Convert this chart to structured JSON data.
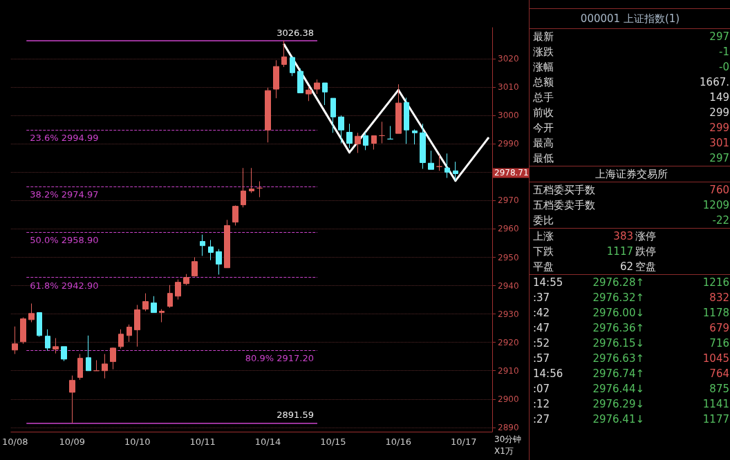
{
  "chart_data": [
    {
      "type": "candlestick",
      "categories": [
        "10/08",
        null,
        null,
        null,
        null,
        null,
        null,
        "10/09",
        null,
        null,
        null,
        null,
        null,
        null,
        null,
        "10/10",
        null,
        null,
        null,
        null,
        null,
        null,
        null,
        "10/11",
        null,
        null,
        null,
        null,
        null,
        null,
        null,
        "10/14",
        null,
        null,
        null,
        null,
        null,
        null,
        null,
        "10/15",
        null,
        null,
        null,
        null,
        null,
        null,
        null,
        "10/16",
        null,
        null,
        null,
        null,
        null,
        null,
        null,
        "10/17",
        null,
        null,
        null
      ],
      "ohlc": [
        [
          2917.3,
          2925.6,
          2915.9,
          2919.5
        ],
        [
          2920.2,
          2928.8,
          2919.5,
          2928.3
        ],
        [
          2928.0,
          2933.7,
          2927.1,
          2930.2
        ],
        [
          2930.5,
          2930.5,
          2922.0,
          2922.4
        ],
        [
          2922.2,
          2924.6,
          2917.1,
          2918.0
        ],
        [
          2917.6,
          2921.5,
          2916.1,
          2918.5
        ],
        [
          2918.5,
          2918.5,
          2913.4,
          2914.1
        ],
        [
          2902.4,
          2908.3,
          2891.59,
          2906.6
        ],
        [
          2907.6,
          2915.9,
          2906.8,
          2914.4
        ],
        [
          2914.6,
          2922.4,
          2910.0,
          2910.0
        ],
        [
          2910.0,
          2913.7,
          2910.0,
          2910.0
        ],
        [
          2910.0,
          2915.9,
          2907.3,
          2912.4
        ],
        [
          2913.2,
          2918.2,
          2910.5,
          2918.0
        ],
        [
          2918.5,
          2924.6,
          2917.8,
          2922.9
        ],
        [
          2922.4,
          2926.3,
          2920.2,
          2925.4
        ],
        [
          2924.4,
          2933.2,
          2918.5,
          2931.5
        ],
        [
          2931.7,
          2937.3,
          2931.0,
          2934.4
        ],
        [
          2933.9,
          2936.3,
          2930.5,
          2930.5
        ],
        [
          2930.5,
          2931.7,
          2927.1,
          2931.0
        ],
        [
          2932.7,
          2940.2,
          2932.2,
          2937.3
        ],
        [
          2936.3,
          2942.2,
          2935.1,
          2941.2
        ],
        [
          2940.7,
          2944.1,
          2940.2,
          2942.9
        ],
        [
          2943.4,
          2950.0,
          2943.2,
          2948.5
        ],
        [
          2955.6,
          2958.0,
          2950.5,
          2954.1
        ],
        [
          2953.7,
          2956.1,
          2949.0,
          2951.7
        ],
        [
          2952.0,
          2952.9,
          2943.9,
          2947.6
        ],
        [
          2946.3,
          2963.2,
          2946.3,
          2961.2
        ],
        [
          2962.4,
          2968.3,
          2961.2,
          2968.0
        ],
        [
          2968.5,
          2981.5,
          2967.6,
          2973.4
        ],
        [
          2973.4,
          2981.5,
          2972.7,
          2974.1
        ],
        [
          2974.4,
          2976.8,
          2971.2,
          2974.4
        ],
        [
          2994.9,
          3009.8,
          2990.5,
          3008.8
        ],
        [
          3009.3,
          3019.5,
          3006.1,
          3017.3
        ],
        [
          3018.0,
          3026.38,
          3017.1,
          3020.7
        ],
        [
          3020.5,
          3020.5,
          3013.9,
          3015.1
        ],
        [
          3015.6,
          3016.6,
          3008.0,
          3008.0
        ],
        [
          3007.6,
          3010.2,
          3005.1,
          3009.0
        ],
        [
          3009.3,
          3012.7,
          3007.6,
          3011.5
        ],
        [
          3011.5,
          3011.5,
          3003.7,
          3008.3
        ],
        [
          3006.1,
          3006.1,
          2993.9,
          2999.5
        ],
        [
          2999.5,
          3000.0,
          2990.2,
          2994.9
        ],
        [
          2994.1,
          2997.1,
          2988.5,
          2990.2
        ],
        [
          2990.0,
          2993.9,
          2986.8,
          2992.7
        ],
        [
          2992.9,
          2994.1,
          2987.8,
          2989.5
        ],
        [
          2990.2,
          2992.9,
          2988.0,
          2992.9
        ],
        [
          2992.9,
          2997.8,
          2990.2,
          2992.9
        ],
        [
          2991.7,
          2996.3,
          2991.7,
          2991.7
        ],
        [
          2993.7,
          3011.0,
          2993.7,
          3004.4
        ],
        [
          3004.6,
          3006.3,
          2990.0,
          2994.9
        ],
        [
          2994.6,
          2995.1,
          2989.8,
          2993.9
        ],
        [
          2993.9,
          2997.1,
          2981.2,
          2983.4
        ],
        [
          2983.2,
          2987.6,
          2981.0,
          2981.0
        ],
        [
          2982.0,
          2986.1,
          2980.5,
          2982.0
        ],
        [
          2981.5,
          2986.6,
          2978.0,
          2980.0
        ],
        [
          2980.5,
          2983.7,
          2977.1,
          2979.5
        ],
        null,
        null,
        null,
        null
      ],
      "series": [
        {
          "type": "line",
          "color": "#ffffff",
          "values": [
            null,
            null,
            null,
            null,
            null,
            null,
            null,
            null,
            null,
            null,
            null,
            null,
            null,
            null,
            null,
            null,
            null,
            null,
            null,
            null,
            null,
            null,
            null,
            null,
            null,
            null,
            null,
            null,
            null,
            null,
            null,
            null,
            null,
            3025,
            null,
            null,
            null,
            null,
            null,
            null,
            null,
            2987,
            null,
            null,
            null,
            null,
            null,
            3009,
            null,
            null,
            null,
            null,
            null,
            null,
            2977,
            null,
            null,
            null,
            2992
          ]
        }
      ],
      "ylim": [
        2888.5,
        3031
      ],
      "yticks": [
        2890,
        2900,
        2910,
        2920,
        2930,
        2940,
        2950,
        2960,
        2970,
        {
          "value": 2980,
          "label": null
        },
        2990,
        3000,
        3010,
        3020
      ],
      "grid": "y",
      "ref_lines": [
        {
          "axis": "y",
          "value": 3026.38,
          "label": "3026.38",
          "color": "#cc44cc",
          "line_style": "solid"
        },
        {
          "axis": "y",
          "value": 2994.99,
          "label": "23.6% 2994.99",
          "color": "#cc44cc",
          "line_style": "dashed"
        },
        {
          "axis": "y",
          "value": 2974.97,
          "label": "38.2% 2974.97",
          "color": "#cc44cc",
          "line_style": "dashed"
        },
        {
          "axis": "y",
          "value": 2958.9,
          "label": "50.0% 2958.90",
          "color": "#cc44cc",
          "line_style": "dashed"
        },
        {
          "axis": "y",
          "value": 2942.9,
          "label": "61.8% 2942.90",
          "color": "#cc44cc",
          "line_style": "dashed"
        },
        {
          "axis": "y",
          "value": 2917.2,
          "label": "80.9% 2917.20",
          "color": "#cc44cc",
          "line_style": "dashed"
        },
        {
          "axis": "y",
          "value": 2891.59,
          "label": "2891.59",
          "color": "#cc44cc",
          "line_style": "solid"
        }
      ],
      "annotations": [
        "2978.71",
        "30分钟",
        "X1万"
      ]
    },
    {
      "type": "other",
      "title": "000001 上证指数(1)",
      "annotations": [
        "最新",
        "297",
        "涨跌",
        "-1",
        "涨幅",
        "-0",
        "总额",
        "1667.",
        "总手",
        "149",
        "前收",
        "299",
        "今开",
        "299",
        "最高",
        "301",
        "最低",
        "297",
        "上海证券交易所",
        "五档委买手数",
        "760",
        "五档委卖手数",
        "1209",
        "委比",
        "-22",
        "上涨",
        "383",
        "涨停",
        "下跌",
        "1117",
        "跌停",
        "平盘",
        "62",
        "空盘",
        "14:55",
        "2976.28↑",
        "1216",
        ":37",
        "2976.32↑",
        "832",
        ":42",
        "2976.00↓",
        "1178",
        ":47",
        "2976.36↑",
        "679",
        ":52",
        "2976.15↓",
        "716",
        ":57",
        "2976.63↑",
        "1045",
        "14:56",
        "2976.74↑",
        "764",
        ":07",
        "2976.44↓",
        "875",
        ":12",
        "2976.29↓",
        "1141",
        ":27",
        "2976.41↓",
        "1177"
      ]
    }
  ]
}
